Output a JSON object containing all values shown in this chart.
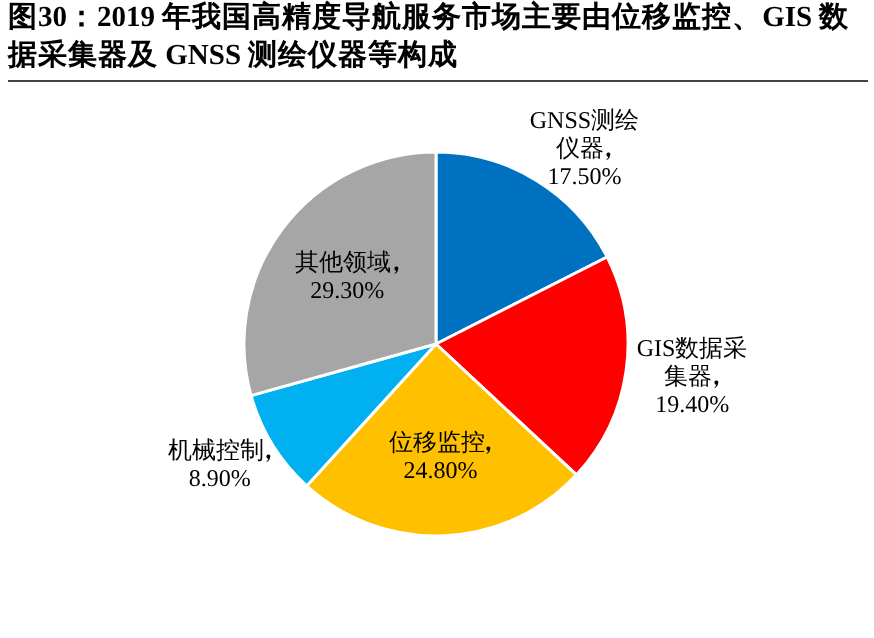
{
  "chart_data": {
    "type": "pie",
    "title": "图30：2019 年我国高精度导航服务市场主要由位移监控、GIS 数据采集器及 GNSS 测绘仪器等构成",
    "categories": [
      "GNSS测绘仪器",
      "GIS数据采集器",
      "位移监控",
      "机械控制",
      "其他领域"
    ],
    "values": [
      17.5,
      19.4,
      24.8,
      8.9,
      29.3
    ],
    "value_labels": [
      "17.50%",
      "19.40%",
      "24.80%",
      "8.90%",
      "29.30%"
    ],
    "colors": [
      "#0070c0",
      "#ff0000",
      "#ffc000",
      "#00b0f0",
      "#a6a6a6"
    ]
  }
}
